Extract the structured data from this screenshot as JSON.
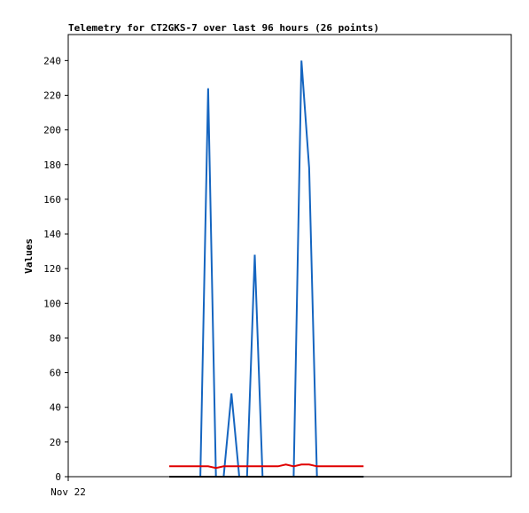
{
  "chart_data": {
    "type": "line",
    "title": "Telemetry for CT2GKS-7 over last 96 hours (26 points)",
    "ylabel": "Values",
    "xlabel": "",
    "ylim": [
      0,
      255
    ],
    "yticks": [
      0,
      20,
      40,
      60,
      80,
      100,
      120,
      140,
      160,
      180,
      200,
      220,
      240
    ],
    "x_tick_labels": [
      "Nov 22"
    ],
    "grid": false,
    "legend": "none",
    "series": [
      {
        "color": "#1565c0",
        "x": [
          0,
          1,
          2,
          3,
          4,
          5,
          6,
          7,
          8,
          9,
          10,
          11,
          12,
          13,
          14,
          15,
          16,
          17,
          18,
          19,
          20,
          21,
          22,
          23,
          24,
          25
        ],
        "values": [
          0,
          0,
          0,
          0,
          0,
          224,
          0,
          0,
          48,
          0,
          0,
          128,
          0,
          0,
          0,
          0,
          0,
          240,
          178,
          0,
          0,
          0,
          0,
          0,
          0,
          0
        ]
      },
      {
        "color": "#e00000",
        "x": [
          0,
          1,
          2,
          3,
          4,
          5,
          6,
          7,
          8,
          9,
          10,
          11,
          12,
          13,
          14,
          15,
          16,
          17,
          18,
          19,
          20,
          21,
          22,
          23,
          24,
          25
        ],
        "values": [
          6,
          6,
          6,
          6,
          6,
          6,
          5,
          6,
          6,
          6,
          6,
          6,
          6,
          6,
          6,
          7,
          6,
          7,
          7,
          6,
          6,
          6,
          6,
          6,
          6,
          6
        ]
      },
      {
        "color": "#000000",
        "x": [
          0,
          1,
          2,
          3,
          4,
          5,
          6,
          7,
          8,
          9,
          10,
          11,
          12,
          13,
          14,
          15,
          16,
          17,
          18,
          19,
          20,
          21,
          22,
          23,
          24,
          25
        ],
        "values": [
          0,
          0,
          0,
          0,
          0,
          0,
          0,
          0,
          0,
          0,
          0,
          0,
          0,
          0,
          0,
          0,
          0,
          0,
          0,
          0,
          0,
          0,
          0,
          0,
          0,
          0
        ]
      }
    ],
    "x_range": [
      -13,
      44
    ],
    "x_tick_positions": [
      -13
    ]
  }
}
